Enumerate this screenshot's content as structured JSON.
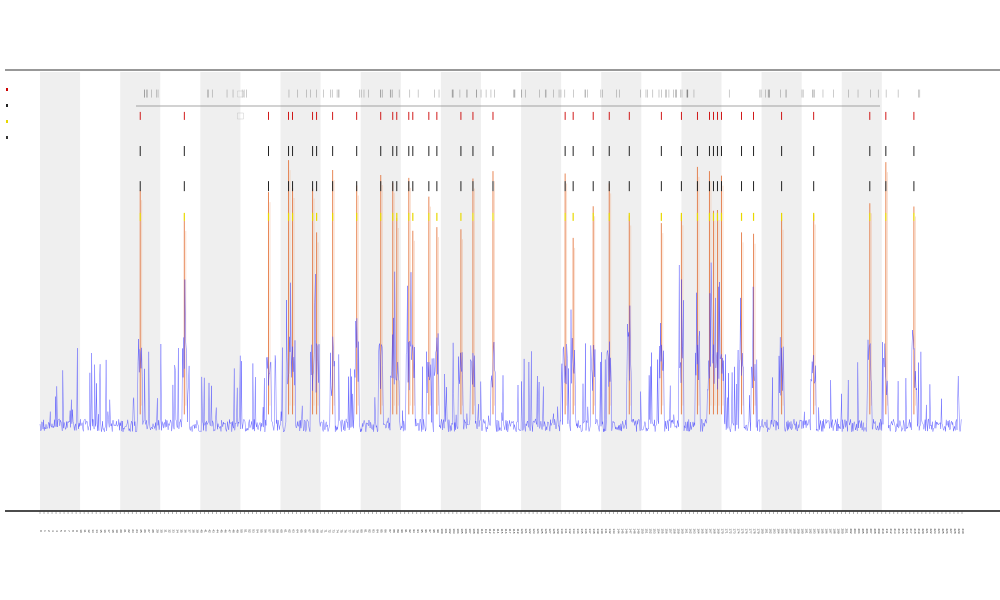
{
  "chart_data": {
    "type": "line",
    "title": "",
    "subtitle_lines": [
      "",
      ""
    ],
    "xlabel": "",
    "ylabel": "",
    "legend_placement": "top-left",
    "grid": false,
    "background_bands": "alternating",
    "x": {
      "start": 0,
      "end": 230,
      "band_width": 10
    },
    "ylim": [
      0,
      100
    ],
    "series": [
      {
        "color": "#3b3bff",
        "baseline": 18,
        "description": "dense blue trace near the bottom with many short spikes"
      },
      {
        "color": "#e06020",
        "spikes_x": [
          25,
          36,
          57,
          62,
          63,
          68,
          69,
          73,
          79,
          85,
          88,
          89,
          92,
          93,
          97,
          99,
          105,
          108,
          113,
          131,
          133,
          138,
          142,
          147,
          155,
          160,
          164,
          167,
          168,
          169,
          170,
          175,
          178,
          185,
          193,
          207,
          211,
          218
        ]
      }
    ],
    "markers": {
      "red_row_y": 90,
      "black_rows_y": [
        82,
        74
      ],
      "yellow_row_y": 67
    },
    "legend": [
      {
        "color": "#cc0000"
      },
      {
        "color": "#222222"
      },
      {
        "color": "#e8d800"
      },
      {
        "color": "#333333"
      }
    ],
    "annotations": [
      {
        "x": 50
      },
      {
        "x": 50
      }
    ]
  }
}
